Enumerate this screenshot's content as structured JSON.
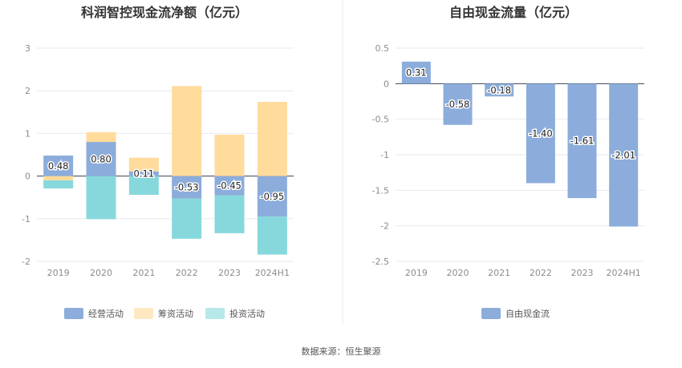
{
  "chart_data": [
    {
      "type": "bar",
      "title": "科润智控现金流净额（亿元）",
      "categories": [
        "2019",
        "2020",
        "2021",
        "2022",
        "2023",
        "2024H1"
      ],
      "y_ticks": [
        "3",
        "2",
        "1",
        "0",
        "-1",
        "-2"
      ],
      "ylim": [
        -2,
        3
      ],
      "stacked": true,
      "grid": true,
      "legend_position": "bottom",
      "series": [
        {
          "name": "经营活动",
          "color": "#8caddb",
          "values": [
            0.48,
            0.8,
            0.11,
            -0.53,
            -0.45,
            -0.95
          ],
          "labels": [
            "0.48",
            "0.80",
            "0.11",
            "-0.53",
            "-0.45",
            "-0.95"
          ]
        },
        {
          "name": "筹资活动",
          "color": "#ffdb9c",
          "values": [
            -0.1,
            0.23,
            0.32,
            2.11,
            0.97,
            1.74
          ]
        },
        {
          "name": "投资活动",
          "color": "#87d8dc",
          "values": [
            -0.19,
            -1.01,
            -0.44,
            -0.94,
            -0.89,
            -0.89
          ]
        }
      ]
    },
    {
      "type": "bar",
      "title": "自由现金流量（亿元）",
      "categories": [
        "2019",
        "2020",
        "2021",
        "2022",
        "2023",
        "2024H1"
      ],
      "y_ticks": [
        "0.5",
        "0",
        "-0.5",
        "-1",
        "-1.5",
        "-2",
        "-2.5"
      ],
      "ylim": [
        -2.5,
        0.5
      ],
      "grid": true,
      "legend_position": "bottom",
      "series": [
        {
          "name": "自由现金流",
          "color": "#8caddb",
          "values": [
            0.31,
            -0.58,
            -0.18,
            -1.4,
            -1.61,
            -2.01
          ],
          "labels": [
            "0.31",
            "-0.58",
            "-0.18",
            "-1.40",
            "-1.61",
            "-2.01"
          ]
        }
      ]
    }
  ],
  "source": "数据来源：恒生聚源"
}
